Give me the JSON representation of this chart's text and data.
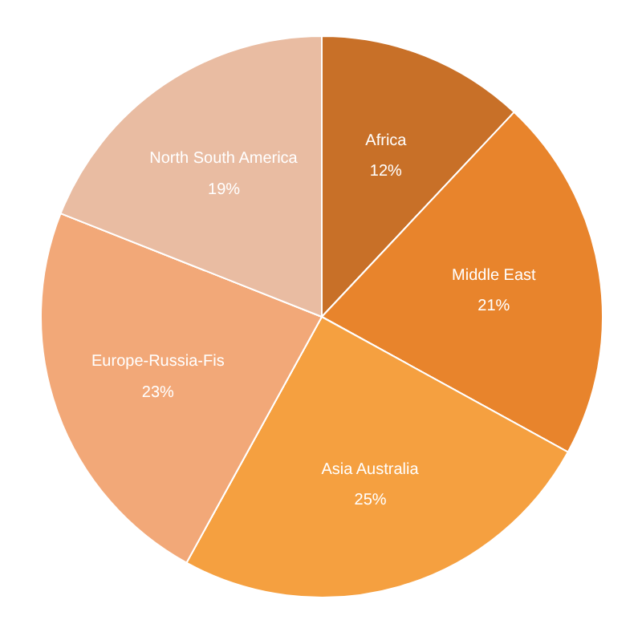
{
  "chart_data": {
    "type": "pie",
    "categories": [
      "Africa",
      "Middle East",
      "Asia Australia",
      "Europe-Russia-Fis",
      "North South America"
    ],
    "values": [
      12,
      21,
      25,
      23,
      19
    ],
    "value_labels": [
      "12%",
      "21%",
      "25%",
      "23%",
      "19%"
    ],
    "colors": [
      "#c87028",
      "#e8842c",
      "#f5a040",
      "#f2a878",
      "#e9bca2"
    ]
  }
}
